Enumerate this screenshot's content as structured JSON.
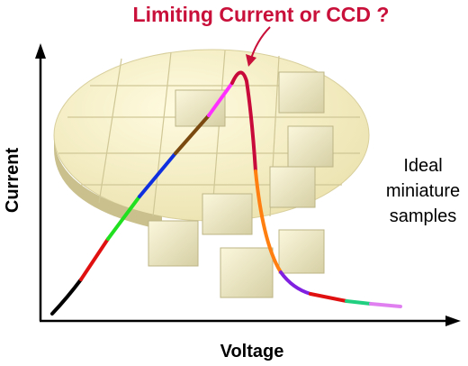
{
  "title": "Limiting Current or CCD ?",
  "axes": {
    "y_label": "Current",
    "x_label": "Voltage"
  },
  "annotation": {
    "lines": [
      "Ideal",
      "miniature",
      "samples"
    ]
  }
}
